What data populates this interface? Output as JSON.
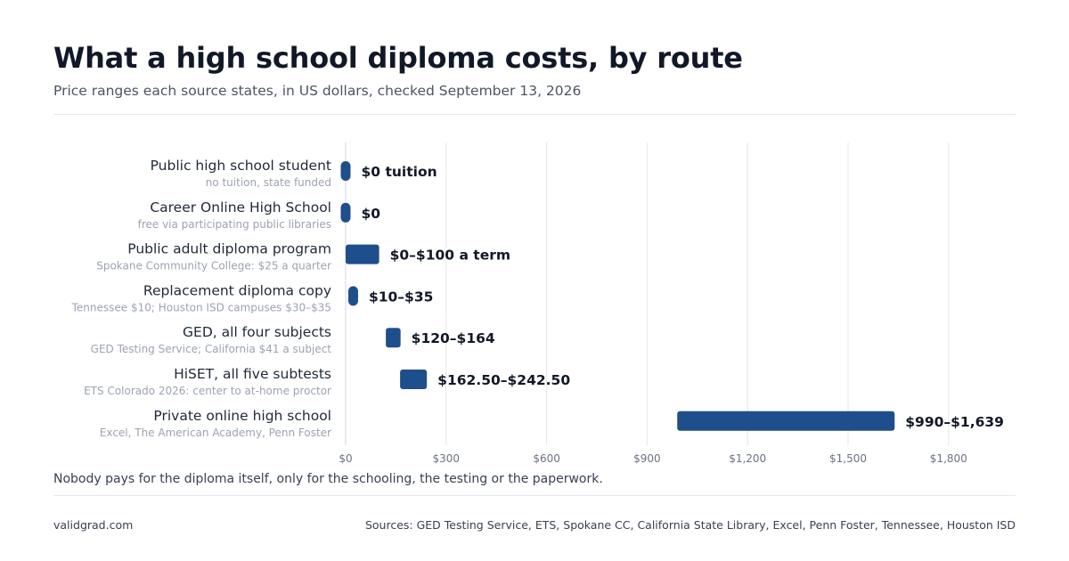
{
  "header": {
    "title": "What a high school diploma costs, by route",
    "subtitle": "Price ranges each source states, in US dollars, checked September 13, 2026"
  },
  "chart_data": {
    "type": "bar",
    "orientation": "horizontal-range",
    "categories": [
      "Public high school student",
      "Career Online High School",
      "Public adult diploma program",
      "Replacement diploma copy",
      "GED, all four subjects",
      "HiSET, all five subtests",
      "Private online high school"
    ],
    "sublabels": [
      "no tuition, state funded",
      "free via participating public libraries",
      "Spokane Community College: $25 a quarter",
      "Tennessee $10; Houston ISD campuses $30–$35",
      "GED Testing Service; California $41 a subject",
      "ETS Colorado 2026: center to at-home proctor",
      "Excel, The American Academy, Penn Foster"
    ],
    "ranges": [
      [
        0,
        0
      ],
      [
        0,
        0
      ],
      [
        0,
        100
      ],
      [
        10,
        35
      ],
      [
        120,
        164
      ],
      [
        162.5,
        242.5
      ],
      [
        990,
        1639
      ]
    ],
    "value_labels": [
      "$0 tuition",
      "$0",
      "$0–$100 a term",
      "$10–$35",
      "$120–$164",
      "$162.50–$242.50",
      "$990–$1,639"
    ],
    "xlim": [
      0,
      2000
    ],
    "xticks": [
      0,
      300,
      600,
      900,
      1200,
      1500,
      1800
    ],
    "xtick_labels": [
      "$0",
      "$300",
      "$600",
      "$900",
      "$1,200",
      "$1,500",
      "$1,800"
    ],
    "grid": true,
    "bar_color": "#1f4e8c"
  },
  "footer": {
    "note": "Nobody pays for the diploma itself, only for the schooling, the testing or the paperwork.",
    "site": "validgrad.com",
    "sources": "Sources: GED Testing Service, ETS, Spokane CC, California State Library, Excel, Penn Foster, Tennessee, Houston ISD"
  }
}
